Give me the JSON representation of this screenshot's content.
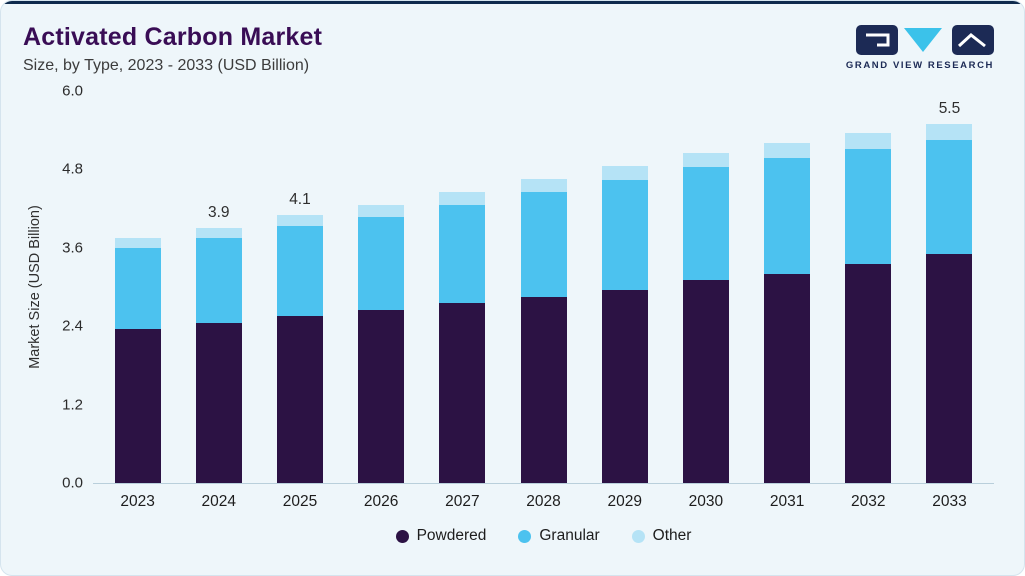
{
  "header": {
    "title": "Activated Carbon Market",
    "subtitle": "Size, by Type, 2023 - 2033 (USD Billion)",
    "logo_text": "GRAND VIEW RESEARCH"
  },
  "colors": {
    "card_background": "#eef6fa",
    "top_accent": "#0e2a4d",
    "title_text": "#390d55",
    "logo_navy": "#1c2a55",
    "logo_cyan": "#3bc2ea",
    "powdered": "#2c1244",
    "granular": "#4cc2ef",
    "other": "#b5e3f6"
  },
  "chart_data": {
    "type": "bar",
    "stacked": true,
    "title": "Activated Carbon Market Size, by Type, 2023 - 2033 (USD Billion)",
    "xlabel": "",
    "ylabel": "Market Size (USD Billion)",
    "ylim": [
      0,
      6.0
    ],
    "ytick_labels": [
      "0.0",
      "1.2",
      "2.4",
      "3.6",
      "4.8",
      "6.0"
    ],
    "grid": false,
    "legend_position": "bottom",
    "categories": [
      "2023",
      "2024",
      "2025",
      "2026",
      "2027",
      "2028",
      "2029",
      "2030",
      "2031",
      "2032",
      "2033"
    ],
    "series": [
      {
        "name": "Powdered",
        "color": "#2c1244",
        "values": [
          2.35,
          2.45,
          2.55,
          2.65,
          2.75,
          2.85,
          2.95,
          3.1,
          3.2,
          3.35,
          3.5
        ]
      },
      {
        "name": "Granular",
        "color": "#4cc2ef",
        "values": [
          1.25,
          1.3,
          1.38,
          1.42,
          1.51,
          1.6,
          1.69,
          1.73,
          1.77,
          1.76,
          1.75
        ]
      },
      {
        "name": "Other",
        "color": "#b5e3f6",
        "values": [
          0.15,
          0.15,
          0.17,
          0.18,
          0.19,
          0.2,
          0.21,
          0.22,
          0.23,
          0.24,
          0.25
        ]
      }
    ],
    "bar_labels": [
      "",
      "3.9",
      "4.1",
      "",
      "",
      "",
      "",
      "",
      "",
      "",
      "5.5"
    ]
  }
}
